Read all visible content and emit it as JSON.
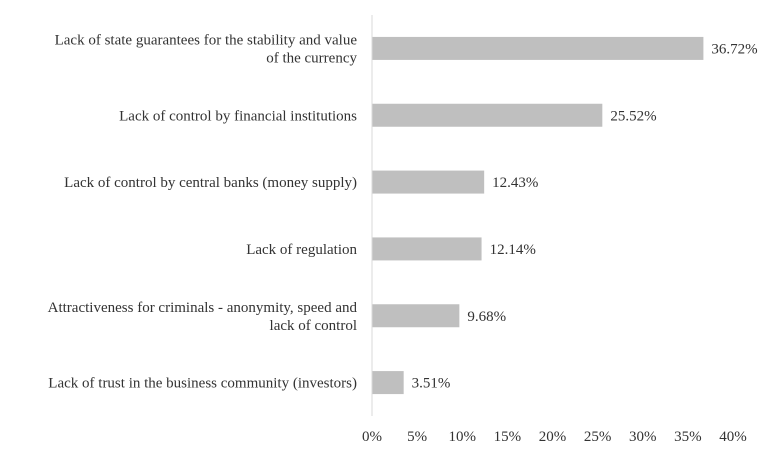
{
  "chart_data": {
    "type": "bar",
    "orientation": "horizontal",
    "title": "",
    "xlabel": "",
    "ylabel": "",
    "categories": [
      [
        "Lack of state guarantees for the stability and value",
        "of the currency"
      ],
      [
        "Lack of control by financial institutions"
      ],
      [
        "Lack of control by central banks (money supply)"
      ],
      [
        "Lack of regulation"
      ],
      [
        "Attractiveness for criminals - anonymity, speed and",
        "lack of control"
      ],
      [
        "Lack of trust in the business community (investors)"
      ]
    ],
    "values": [
      36.72,
      25.52,
      12.43,
      12.14,
      9.68,
      3.51
    ],
    "data_labels": [
      "36.72%",
      "25.52%",
      "12.43%",
      "12.14%",
      "9.68%",
      "3.51%"
    ],
    "xlim": [
      0,
      40
    ],
    "x_ticks": [
      "0%",
      "5%",
      "10%",
      "15%",
      "20%",
      "25%",
      "30%",
      "35%",
      "40%"
    ],
    "grid": false,
    "legend": "none",
    "colors": {
      "bar": "#BFBFBF",
      "axis": "#D9D9D9",
      "text": "#333333"
    }
  }
}
